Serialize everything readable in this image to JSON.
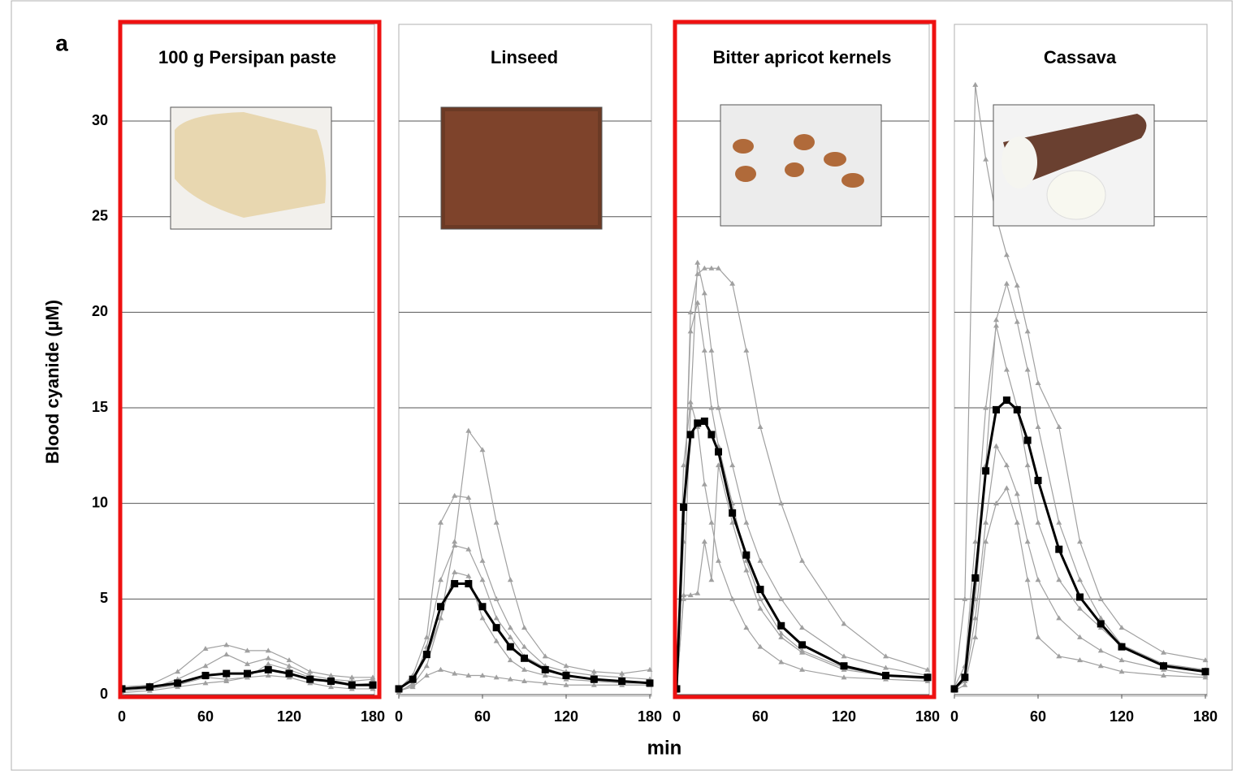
{
  "figure": {
    "panel_label": "a",
    "ylabel": "Blood cyanide (µM)",
    "xlabel": "min"
  },
  "chart_data": [
    {
      "type": "line",
      "title": "100 g Persipan paste",
      "highlight": true,
      "x": [
        0,
        20,
        40,
        60,
        75,
        90,
        105,
        120,
        135,
        150,
        165,
        180
      ],
      "series": [
        {
          "color": "#a0a0a0",
          "values": [
            0.4,
            0.5,
            1.2,
            2.4,
            2.6,
            2.3,
            2.3,
            1.8,
            1.2,
            1.0,
            0.9,
            0.9
          ]
        },
        {
          "color": "#a0a0a0",
          "values": [
            0.2,
            0.3,
            0.8,
            1.5,
            2.1,
            1.6,
            1.9,
            1.5,
            1.0,
            0.8,
            0.7,
            0.8
          ]
        },
        {
          "color": "#a0a0a0",
          "values": [
            0.1,
            0.2,
            0.4,
            0.6,
            0.7,
            0.9,
            1.0,
            0.9,
            0.6,
            0.4,
            0.3,
            0.3
          ]
        },
        {
          "color": "#a0a0a0",
          "values": [
            0.3,
            0.3,
            0.5,
            0.9,
            0.8,
            0.9,
            1.6,
            1.3,
            0.9,
            0.6,
            0.5,
            0.6
          ]
        },
        {
          "color": "#000000",
          "values": [
            0.3,
            0.4,
            0.6,
            1.0,
            1.1,
            1.1,
            1.3,
            1.1,
            0.8,
            0.7,
            0.5,
            0.5
          ]
        }
      ],
      "xlim": [
        0,
        180
      ],
      "xticks": [
        0,
        60,
        120,
        180
      ],
      "ylim": [
        0,
        35
      ],
      "yticks": [
        0,
        5,
        10,
        15,
        20,
        25,
        30
      ],
      "grid": true
    },
    {
      "type": "line",
      "title": "Linseed",
      "highlight": false,
      "x": [
        0,
        10,
        20,
        30,
        40,
        50,
        60,
        70,
        80,
        90,
        105,
        120,
        140,
        160,
        180
      ],
      "series": [
        {
          "color": "#a0a0a0",
          "values": [
            0.2,
            0.5,
            1.5,
            4,
            8,
            13.8,
            12.8,
            9,
            6,
            3.5,
            2,
            1.5,
            1.2,
            1.1,
            1.3
          ]
        },
        {
          "color": "#a0a0a0",
          "values": [
            0.3,
            1,
            3,
            9,
            10.4,
            10.3,
            7,
            5,
            3.5,
            2.5,
            1.5,
            1.2,
            1,
            0.9,
            0.8
          ]
        },
        {
          "color": "#a0a0a0",
          "values": [
            0.1,
            0.6,
            2.5,
            6,
            7.8,
            7.6,
            6,
            4,
            3,
            2,
            1.4,
            1,
            0.8,
            0.7,
            0.6
          ]
        },
        {
          "color": "#a0a0a0",
          "values": [
            0.2,
            0.4,
            1,
            1.3,
            1.1,
            1,
            1,
            0.9,
            0.8,
            0.7,
            0.6,
            0.5,
            0.5,
            0.5,
            0.5
          ]
        },
        {
          "color": "#a0a0a0",
          "values": [
            0.3,
            0.7,
            2,
            4,
            6.4,
            6.2,
            4,
            2.8,
            1.8,
            1.3,
            1,
            0.8,
            0.7,
            0.6,
            0.6
          ]
        },
        {
          "color": "#000000",
          "values": [
            0.3,
            0.8,
            2.1,
            4.6,
            5.8,
            5.8,
            4.6,
            3.5,
            2.5,
            1.9,
            1.3,
            1.0,
            0.8,
            0.7,
            0.6
          ]
        }
      ],
      "xlim": [
        0,
        180
      ],
      "xticks": [
        0,
        60,
        120,
        180
      ],
      "ylim": [
        0,
        35
      ],
      "yticks": [
        0,
        5,
        10,
        15,
        20,
        25,
        30
      ],
      "grid": true
    },
    {
      "type": "line",
      "title": "Bitter apricot kernels",
      "highlight": true,
      "x": [
        0,
        5,
        10,
        15,
        20,
        25,
        30,
        40,
        50,
        60,
        75,
        90,
        120,
        150,
        180
      ],
      "series": [
        {
          "color": "#a0a0a0",
          "values": [
            0.3,
            5,
            15,
            22.6,
            21,
            18,
            15,
            12,
            9,
            7,
            5,
            3.5,
            2,
            1.4,
            1
          ]
        },
        {
          "color": "#a0a0a0",
          "values": [
            0.2,
            8,
            20,
            22,
            22.3,
            22.3,
            22.3,
            21.5,
            18,
            14,
            10,
            7,
            3.7,
            2,
            1.3
          ]
        },
        {
          "color": "#a0a0a0",
          "values": [
            0.2,
            5.2,
            5.2,
            5.3,
            8,
            6,
            12,
            9,
            6.5,
            4.5,
            3,
            2.2,
            1.3,
            1,
            0.8
          ]
        },
        {
          "color": "#a0a0a0",
          "values": [
            0.4,
            12,
            15.3,
            14,
            11,
            9,
            7,
            5,
            3.5,
            2.5,
            1.7,
            1.3,
            0.9,
            0.8,
            0.7
          ]
        },
        {
          "color": "#a0a0a0",
          "values": [
            0.3,
            9,
            19,
            20.5,
            18,
            15,
            13,
            10,
            7,
            5,
            3.2,
            2.3,
            1.4,
            1,
            0.9
          ]
        },
        {
          "color": "#000000",
          "values": [
            0.3,
            9.8,
            13.6,
            14.2,
            14.3,
            13.6,
            12.7,
            9.5,
            7.3,
            5.5,
            3.6,
            2.6,
            1.5,
            1.0,
            0.9
          ]
        }
      ],
      "xlim": [
        0,
        180
      ],
      "xticks": [
        0,
        60,
        120,
        180
      ],
      "ylim": [
        0,
        35
      ],
      "yticks": [
        0,
        5,
        10,
        15,
        20,
        25,
        30
      ],
      "grid": true
    },
    {
      "type": "line",
      "title": "Cassava",
      "highlight": false,
      "x": [
        0,
        7.5,
        15,
        22.5,
        30,
        37.5,
        45,
        52.5,
        60,
        75,
        90,
        105,
        120,
        150,
        180
      ],
      "series": [
        {
          "color": "#a0a0a0",
          "values": [
            0.3,
            5,
            31.9,
            28,
            25,
            23,
            21.4,
            19,
            16.3,
            14,
            8,
            5,
            3.5,
            2.2,
            1.8
          ]
        },
        {
          "color": "#a0a0a0",
          "values": [
            0.3,
            1,
            5,
            12,
            19.6,
            21.5,
            19.5,
            17,
            14,
            9,
            6,
            4,
            2.6,
            1.6,
            1.3
          ]
        },
        {
          "color": "#a0a0a0",
          "values": [
            0.2,
            0.5,
            3,
            8,
            10,
            10.8,
            9,
            6,
            3,
            2,
            1.8,
            1.5,
            1.2,
            1,
            0.9
          ]
        },
        {
          "color": "#a0a0a0",
          "values": [
            0.4,
            1.5,
            8,
            15,
            19.3,
            17,
            15,
            12,
            9,
            6,
            4.5,
            3.5,
            2.5,
            1.6,
            1.2
          ]
        },
        {
          "color": "#a0a0a0",
          "values": [
            0.3,
            0.7,
            4,
            9,
            13,
            12,
            10.5,
            8,
            6,
            4,
            3,
            2.3,
            1.8,
            1.3,
            1.0
          ]
        },
        {
          "color": "#000000",
          "values": [
            0.3,
            0.9,
            6.1,
            11.7,
            14.9,
            15.4,
            14.9,
            13.3,
            11.2,
            7.6,
            5.1,
            3.7,
            2.5,
            1.5,
            1.2
          ]
        }
      ],
      "xlim": [
        0,
        180
      ],
      "xticks": [
        0,
        60,
        120,
        180
      ],
      "ylim": [
        0,
        35
      ],
      "yticks": [
        0,
        5,
        10,
        15,
        20,
        25,
        30
      ],
      "grid": true
    }
  ]
}
